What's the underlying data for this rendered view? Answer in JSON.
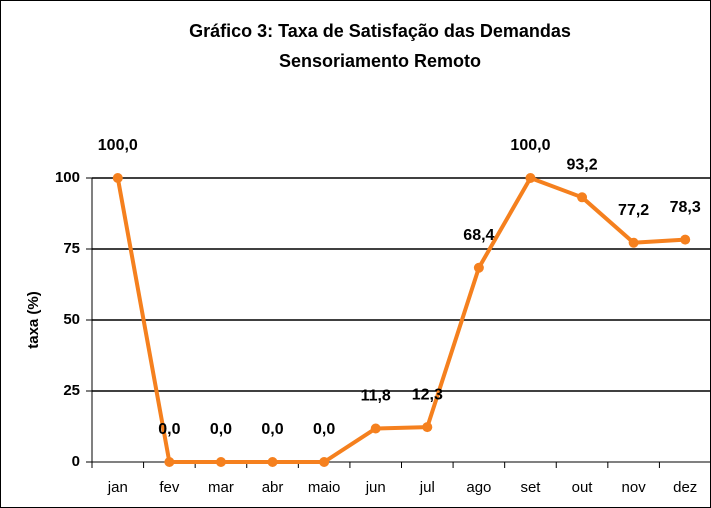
{
  "chart_data": {
    "type": "line",
    "title": "Gráfico 3: Taxa de Satisfação das Demandas",
    "subtitle": "Sensoriamento Remoto",
    "y_label": "taxa (%)",
    "categories": [
      "jan",
      "fev",
      "mar",
      "abr",
      "maio",
      "jun",
      "jul",
      "ago",
      "set",
      "out",
      "nov",
      "dez"
    ],
    "values": [
      100,
      0,
      0,
      0,
      0,
      11.8,
      12.3,
      68.4,
      100,
      93.2,
      77.2,
      78.3
    ],
    "value_labels": [
      "100,0",
      "0,0",
      "0,0",
      "0,0",
      "0,0",
      "11,8",
      "12,3",
      "68,4",
      "100,0",
      "93,2",
      "77,2",
      "78,3"
    ],
    "color": "#f5801e",
    "ylim": [
      0,
      100
    ],
    "yticks": [
      0,
      25,
      50,
      75,
      100
    ],
    "grid": true
  }
}
